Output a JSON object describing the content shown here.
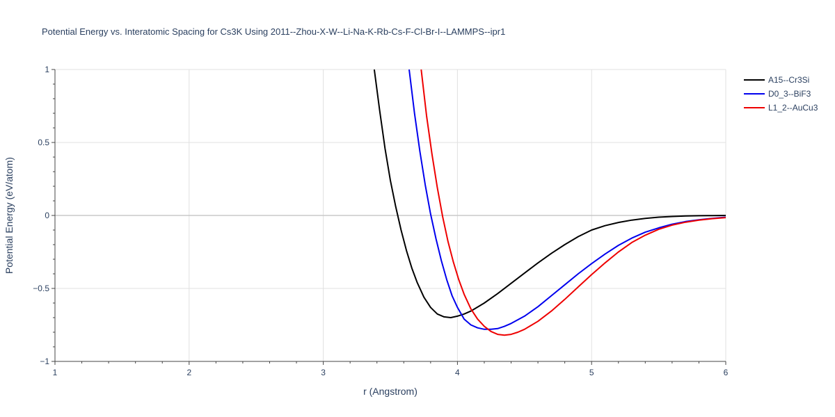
{
  "chart_data": {
    "type": "line",
    "title": "Potential Energy vs. Interatomic Spacing for Cs3K Using 2011--Zhou-X-W--Li-Na-K-Rb-Cs-F-Cl-Br-I--LAMMPS--ipr1",
    "xlabel": "r (Angstrom)",
    "ylabel": "Potential Energy (eV/atom)",
    "xlim": [
      1,
      6
    ],
    "ylim": [
      -1,
      1
    ],
    "xticks": [
      1,
      2,
      3,
      4,
      5,
      6
    ],
    "yticks": [
      -1,
      -0.5,
      0,
      0.5,
      1
    ],
    "ytick_labels": [
      "−1",
      "−0.5",
      "0",
      "0.5",
      "1"
    ],
    "grid": true,
    "legend_position": "top-right",
    "series": [
      {
        "name": "A15--Cr3Si",
        "color": "#000000",
        "x": [
          3.38,
          3.42,
          3.46,
          3.5,
          3.54,
          3.58,
          3.62,
          3.66,
          3.7,
          3.75,
          3.8,
          3.85,
          3.9,
          3.95,
          4.0,
          4.05,
          4.1,
          4.2,
          4.3,
          4.4,
          4.5,
          4.6,
          4.7,
          4.8,
          4.9,
          5.0,
          5.1,
          5.2,
          5.3,
          5.4,
          5.5,
          5.6,
          5.7,
          5.8,
          5.9,
          6.0
        ],
        "y": [
          1.0,
          0.72,
          0.46,
          0.24,
          0.06,
          -0.1,
          -0.24,
          -0.36,
          -0.46,
          -0.56,
          -0.63,
          -0.675,
          -0.695,
          -0.7,
          -0.69,
          -0.675,
          -0.655,
          -0.6,
          -0.535,
          -0.465,
          -0.395,
          -0.325,
          -0.26,
          -0.2,
          -0.145,
          -0.1,
          -0.07,
          -0.048,
          -0.032,
          -0.02,
          -0.012,
          -0.007,
          -0.004,
          -0.002,
          -0.001,
          0.0
        ]
      },
      {
        "name": "D0_3--BiF3",
        "color": "#0000ee",
        "x": [
          3.64,
          3.68,
          3.72,
          3.76,
          3.8,
          3.84,
          3.88,
          3.92,
          3.96,
          4.0,
          4.05,
          4.1,
          4.15,
          4.2,
          4.25,
          4.3,
          4.35,
          4.4,
          4.5,
          4.6,
          4.7,
          4.8,
          4.9,
          5.0,
          5.1,
          5.2,
          5.3,
          5.4,
          5.5,
          5.6,
          5.7,
          5.8,
          5.9,
          6.0
        ],
        "y": [
          1.0,
          0.7,
          0.44,
          0.21,
          0.01,
          -0.16,
          -0.31,
          -0.44,
          -0.55,
          -0.63,
          -0.71,
          -0.75,
          -0.77,
          -0.78,
          -0.78,
          -0.775,
          -0.76,
          -0.74,
          -0.69,
          -0.625,
          -0.55,
          -0.475,
          -0.4,
          -0.33,
          -0.265,
          -0.205,
          -0.155,
          -0.115,
          -0.085,
          -0.06,
          -0.042,
          -0.03,
          -0.02,
          -0.012
        ]
      },
      {
        "name": "L1_2--AuCu3",
        "color": "#ee0000",
        "x": [
          3.73,
          3.77,
          3.81,
          3.85,
          3.89,
          3.93,
          3.97,
          4.01,
          4.05,
          4.1,
          4.15,
          4.2,
          4.25,
          4.3,
          4.35,
          4.4,
          4.45,
          4.5,
          4.6,
          4.7,
          4.8,
          4.9,
          5.0,
          5.1,
          5.2,
          5.3,
          5.4,
          5.5,
          5.6,
          5.7,
          5.8,
          5.9,
          6.0
        ],
        "y": [
          1.0,
          0.68,
          0.42,
          0.19,
          -0.01,
          -0.18,
          -0.32,
          -0.44,
          -0.54,
          -0.64,
          -0.71,
          -0.76,
          -0.795,
          -0.815,
          -0.82,
          -0.815,
          -0.8,
          -0.78,
          -0.725,
          -0.655,
          -0.575,
          -0.49,
          -0.405,
          -0.325,
          -0.25,
          -0.185,
          -0.135,
          -0.095,
          -0.066,
          -0.046,
          -0.032,
          -0.022,
          -0.015
        ]
      }
    ]
  }
}
